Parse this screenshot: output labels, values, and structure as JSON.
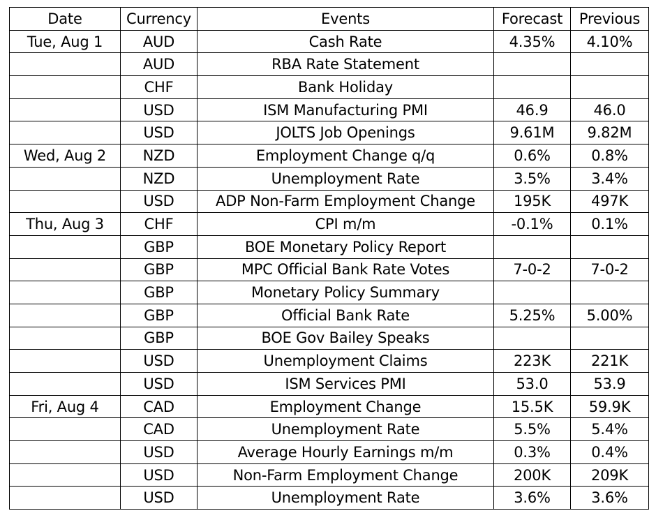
{
  "headers": {
    "date": "Date",
    "currency": "Currency",
    "events": "Events",
    "forecast": "Forecast",
    "previous": "Previous"
  },
  "rows": [
    {
      "date": "Tue, Aug 1",
      "currency": "AUD",
      "event": "Cash Rate",
      "forecast": "4.35%",
      "previous": "4.10%"
    },
    {
      "date": "",
      "currency": "AUD",
      "event": "RBA Rate Statement",
      "forecast": "",
      "previous": ""
    },
    {
      "date": "",
      "currency": "CHF",
      "event": "Bank Holiday",
      "forecast": "",
      "previous": ""
    },
    {
      "date": "",
      "currency": "USD",
      "event": "ISM Manufacturing PMI",
      "forecast": "46.9",
      "previous": "46.0"
    },
    {
      "date": "",
      "currency": "USD",
      "event": "JOLTS Job Openings",
      "forecast": "9.61M",
      "previous": "9.82M"
    },
    {
      "date": "Wed, Aug 2",
      "currency": "NZD",
      "event": "Employment Change q/q",
      "forecast": "0.6%",
      "previous": "0.8%"
    },
    {
      "date": "",
      "currency": "NZD",
      "event": "Unemployment Rate",
      "forecast": "3.5%",
      "previous": "3.4%"
    },
    {
      "date": "",
      "currency": "USD",
      "event": "ADP Non-Farm Employment Change",
      "forecast": "195K",
      "previous": "497K"
    },
    {
      "date": "Thu, Aug 3",
      "currency": "CHF",
      "event": "CPI m/m",
      "forecast": "-0.1%",
      "previous": "0.1%"
    },
    {
      "date": "",
      "currency": "GBP",
      "event": "BOE Monetary Policy Report",
      "forecast": "",
      "previous": ""
    },
    {
      "date": "",
      "currency": "GBP",
      "event": "MPC Official Bank Rate Votes",
      "forecast": "7-0-2",
      "previous": "7-0-2"
    },
    {
      "date": "",
      "currency": "GBP",
      "event": "Monetary Policy Summary",
      "forecast": "",
      "previous": ""
    },
    {
      "date": "",
      "currency": "GBP",
      "event": "Official Bank Rate",
      "forecast": "5.25%",
      "previous": "5.00%"
    },
    {
      "date": "",
      "currency": "GBP",
      "event": "BOE Gov Bailey Speaks",
      "forecast": "",
      "previous": ""
    },
    {
      "date": "",
      "currency": "USD",
      "event": "Unemployment Claims",
      "forecast": "223K",
      "previous": "221K"
    },
    {
      "date": "",
      "currency": "USD",
      "event": "ISM Services PMI",
      "forecast": "53.0",
      "previous": "53.9"
    },
    {
      "date": "Fri, Aug 4",
      "currency": "CAD",
      "event": "Employment Change",
      "forecast": "15.5K",
      "previous": "59.9K"
    },
    {
      "date": "",
      "currency": "CAD",
      "event": "Unemployment Rate",
      "forecast": "5.5%",
      "previous": "5.4%"
    },
    {
      "date": "",
      "currency": "USD",
      "event": "Average Hourly Earnings m/m",
      "forecast": "0.3%",
      "previous": "0.4%"
    },
    {
      "date": "",
      "currency": "USD",
      "event": "Non-Farm Employment Change",
      "forecast": "200K",
      "previous": "209K"
    },
    {
      "date": "",
      "currency": "USD",
      "event": "Unemployment Rate",
      "forecast": "3.6%",
      "previous": "3.6%"
    }
  ]
}
